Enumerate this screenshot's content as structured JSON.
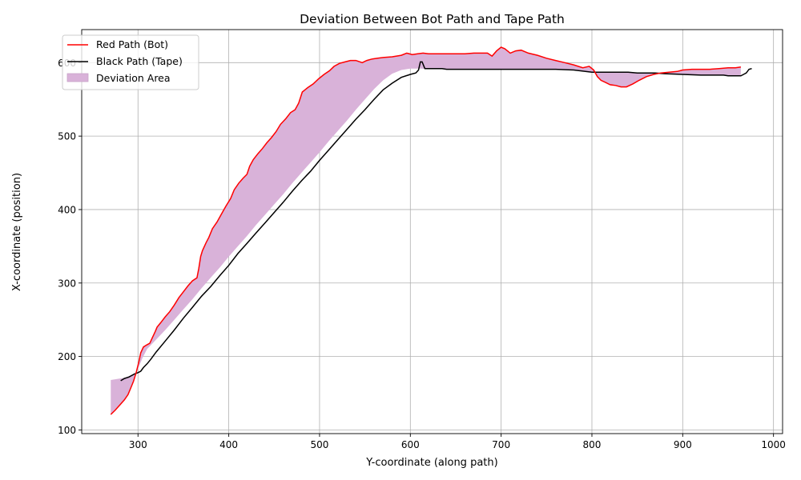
{
  "chart_data": {
    "type": "line",
    "title": "Deviation Between Bot Path and Tape Path",
    "xlabel": "Y-coordinate (along path)",
    "ylabel": "X-coordinate (position)",
    "xlim": [
      238,
      1010
    ],
    "ylim": [
      95,
      645
    ],
    "xticks": [
      300,
      400,
      500,
      600,
      700,
      800,
      900,
      1000
    ],
    "yticks": [
      100,
      200,
      300,
      400,
      500,
      600
    ],
    "grid": true,
    "legend_position": "upper-left",
    "series": [
      {
        "name": "Red Path (Bot)",
        "color": "#ff0000",
        "points": [
          [
            270,
            121
          ],
          [
            275,
            127
          ],
          [
            280,
            134
          ],
          [
            285,
            141
          ],
          [
            289,
            148
          ],
          [
            292,
            157
          ],
          [
            295,
            166
          ],
          [
            298,
            178
          ],
          [
            301,
            193
          ],
          [
            303,
            205
          ],
          [
            306,
            213
          ],
          [
            310,
            216
          ],
          [
            313,
            218
          ],
          [
            316,
            226
          ],
          [
            319,
            234
          ],
          [
            321,
            240
          ],
          [
            325,
            246
          ],
          [
            330,
            254
          ],
          [
            335,
            261
          ],
          [
            340,
            270
          ],
          [
            345,
            280
          ],
          [
            350,
            288
          ],
          [
            355,
            296
          ],
          [
            360,
            303
          ],
          [
            365,
            307
          ],
          [
            367,
            320
          ],
          [
            369,
            336
          ],
          [
            371,
            344
          ],
          [
            375,
            355
          ],
          [
            378,
            362
          ],
          [
            382,
            374
          ],
          [
            387,
            383
          ],
          [
            392,
            394
          ],
          [
            397,
            405
          ],
          [
            402,
            415
          ],
          [
            406,
            427
          ],
          [
            411,
            436
          ],
          [
            416,
            443
          ],
          [
            420,
            448
          ],
          [
            423,
            459
          ],
          [
            427,
            468
          ],
          [
            432,
            476
          ],
          [
            437,
            483
          ],
          [
            442,
            491
          ],
          [
            447,
            498
          ],
          [
            452,
            506
          ],
          [
            457,
            516
          ],
          [
            463,
            524
          ],
          [
            468,
            532
          ],
          [
            473,
            536
          ],
          [
            477,
            545
          ],
          [
            481,
            560
          ],
          [
            487,
            566
          ],
          [
            493,
            571
          ],
          [
            499,
            578
          ],
          [
            505,
            584
          ],
          [
            511,
            589
          ],
          [
            516,
            595
          ],
          [
            522,
            599
          ],
          [
            528,
            601
          ],
          [
            534,
            603
          ],
          [
            540,
            603
          ],
          [
            547,
            600
          ],
          [
            552,
            603
          ],
          [
            558,
            605
          ],
          [
            564,
            606
          ],
          [
            570,
            607
          ],
          [
            580,
            608
          ],
          [
            590,
            610
          ],
          [
            596,
            613
          ],
          [
            602,
            611
          ],
          [
            608,
            612
          ],
          [
            614,
            613
          ],
          [
            620,
            612
          ],
          [
            630,
            612
          ],
          [
            640,
            612
          ],
          [
            660,
            612
          ],
          [
            670,
            613
          ],
          [
            685,
            613
          ],
          [
            690,
            609
          ],
          [
            695,
            616
          ],
          [
            700,
            621
          ],
          [
            704,
            619
          ],
          [
            710,
            613
          ],
          [
            716,
            616
          ],
          [
            722,
            617
          ],
          [
            730,
            613
          ],
          [
            740,
            610
          ],
          [
            750,
            606
          ],
          [
            760,
            603
          ],
          [
            770,
            600
          ],
          [
            780,
            597
          ],
          [
            790,
            593
          ],
          [
            797,
            595
          ],
          [
            802,
            590
          ],
          [
            806,
            581
          ],
          [
            810,
            576
          ],
          [
            815,
            573
          ],
          [
            820,
            570
          ],
          [
            826,
            569
          ],
          [
            832,
            567
          ],
          [
            838,
            567
          ],
          [
            845,
            571
          ],
          [
            852,
            576
          ],
          [
            860,
            581
          ],
          [
            868,
            584
          ],
          [
            876,
            586
          ],
          [
            885,
            587
          ],
          [
            894,
            588
          ],
          [
            900,
            590
          ],
          [
            910,
            591
          ],
          [
            920,
            591
          ],
          [
            930,
            591
          ],
          [
            940,
            592
          ],
          [
            950,
            593
          ],
          [
            958,
            593
          ],
          [
            964,
            594
          ]
        ]
      },
      {
        "name": "Black Path (Tape)",
        "color": "#000000",
        "points": [
          [
            281,
            167
          ],
          [
            285,
            170
          ],
          [
            290,
            172
          ],
          [
            296,
            176
          ],
          [
            300,
            178
          ],
          [
            303,
            180
          ],
          [
            306,
            185
          ],
          [
            310,
            190
          ],
          [
            314,
            196
          ],
          [
            320,
            206
          ],
          [
            330,
            221
          ],
          [
            340,
            236
          ],
          [
            350,
            252
          ],
          [
            360,
            267
          ],
          [
            370,
            282
          ],
          [
            380,
            295
          ],
          [
            390,
            310
          ],
          [
            400,
            324
          ],
          [
            410,
            340
          ],
          [
            420,
            354
          ],
          [
            430,
            368
          ],
          [
            440,
            382
          ],
          [
            450,
            396
          ],
          [
            460,
            410
          ],
          [
            470,
            425
          ],
          [
            480,
            439
          ],
          [
            490,
            452
          ],
          [
            500,
            467
          ],
          [
            510,
            481
          ],
          [
            520,
            495
          ],
          [
            530,
            509
          ],
          [
            540,
            523
          ],
          [
            550,
            536
          ],
          [
            560,
            550
          ],
          [
            570,
            563
          ],
          [
            580,
            572
          ],
          [
            590,
            580
          ],
          [
            600,
            584
          ],
          [
            606,
            586
          ],
          [
            609,
            590
          ],
          [
            611,
            601
          ],
          [
            613,
            601
          ],
          [
            616,
            592
          ],
          [
            620,
            592
          ],
          [
            630,
            592
          ],
          [
            635,
            592
          ],
          [
            640,
            591
          ],
          [
            700,
            591
          ],
          [
            760,
            591
          ],
          [
            780,
            590
          ],
          [
            800,
            587
          ],
          [
            840,
            587
          ],
          [
            850,
            586
          ],
          [
            870,
            586
          ],
          [
            880,
            585
          ],
          [
            900,
            584
          ],
          [
            920,
            583
          ],
          [
            945,
            583
          ],
          [
            950,
            582
          ],
          [
            964,
            582
          ],
          [
            967,
            584
          ],
          [
            970,
            586
          ],
          [
            973,
            591
          ],
          [
            976,
            592
          ]
        ]
      },
      {
        "name": "Deviation Area",
        "color": "#d9b2d9",
        "lower_edge_points": [
          [
            270,
            168
          ],
          [
            285,
            171
          ],
          [
            296,
            176
          ],
          [
            300,
            183
          ],
          [
            305,
            198
          ],
          [
            310,
            210
          ],
          [
            320,
            223
          ],
          [
            330,
            236
          ],
          [
            340,
            250
          ],
          [
            350,
            264
          ],
          [
            360,
            278
          ],
          [
            370,
            293
          ],
          [
            380,
            307
          ],
          [
            390,
            321
          ],
          [
            400,
            336
          ],
          [
            410,
            350
          ],
          [
            420,
            364
          ],
          [
            430,
            379
          ],
          [
            440,
            393
          ],
          [
            450,
            407
          ],
          [
            460,
            421
          ],
          [
            470,
            436
          ],
          [
            480,
            450
          ],
          [
            490,
            464
          ],
          [
            500,
            478
          ],
          [
            510,
            493
          ],
          [
            520,
            507
          ],
          [
            530,
            521
          ],
          [
            540,
            536
          ],
          [
            550,
            550
          ],
          [
            560,
            564
          ],
          [
            570,
            576
          ],
          [
            580,
            585
          ],
          [
            590,
            590
          ],
          [
            600,
            592
          ],
          [
            610,
            592
          ],
          [
            640,
            591
          ],
          [
            700,
            591
          ],
          [
            760,
            591
          ],
          [
            780,
            590
          ],
          [
            800,
            587
          ],
          [
            840,
            587
          ],
          [
            850,
            586
          ],
          [
            870,
            586
          ],
          [
            880,
            585
          ],
          [
            900,
            584
          ],
          [
            920,
            583
          ],
          [
            945,
            583
          ],
          [
            950,
            582
          ],
          [
            964,
            583
          ]
        ]
      }
    ]
  }
}
